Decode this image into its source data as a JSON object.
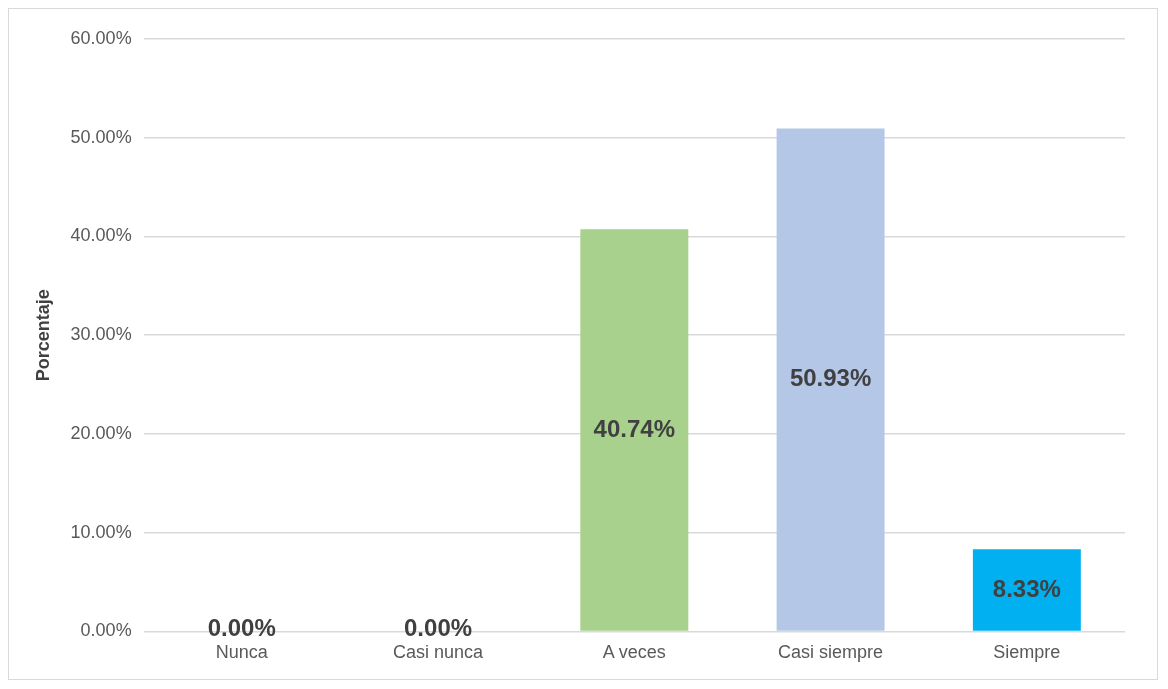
{
  "chart_data": {
    "type": "bar",
    "ylabel": "Porcentaje",
    "categories": [
      "Nunca",
      "Casi nunca",
      "A veces",
      "Casi siempre",
      "Siempre"
    ],
    "values": [
      0,
      0,
      40.74,
      50.93,
      8.33
    ],
    "value_labels": [
      "0.00%",
      "0.00%",
      "40.74%",
      "50.93%",
      "8.33%"
    ],
    "colors": [
      "#c8c800",
      "#c09000",
      "#a9d18e",
      "#b4c7e7",
      "#00b0f0"
    ],
    "ylim": [
      0,
      60
    ],
    "yticks": [
      {
        "value": 0,
        "label": "0.00%"
      },
      {
        "value": 10,
        "label": "10.00%"
      },
      {
        "value": 20,
        "label": "20.00%"
      },
      {
        "value": 30,
        "label": "30.00%"
      },
      {
        "value": 40,
        "label": "40.00%"
      },
      {
        "value": 50,
        "label": "50.00%"
      },
      {
        "value": 60,
        "label": "60.00%"
      }
    ],
    "grid": true
  }
}
